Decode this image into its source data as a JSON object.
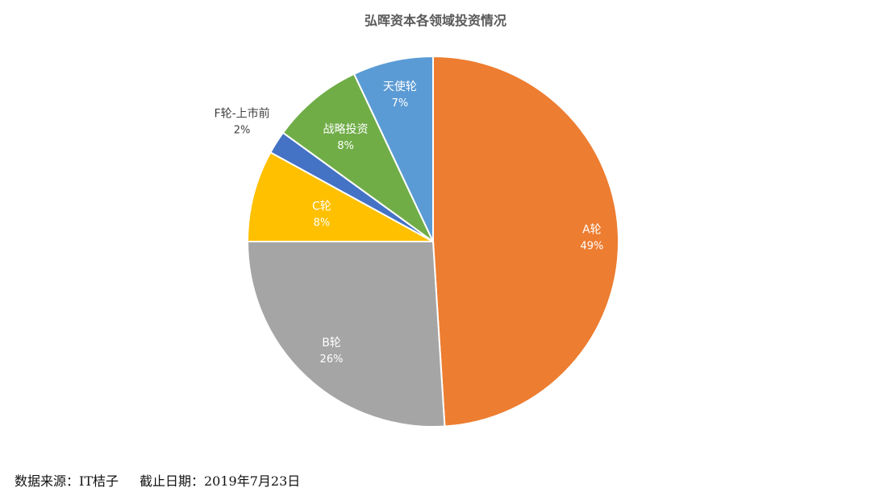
{
  "chart_data": {
    "type": "pie",
    "title": "弘晖资本各领域投资情况",
    "slices": [
      {
        "label": "A轮",
        "value": 49,
        "pct": "49%",
        "color": "#ED7D31",
        "label_color": "#ffffff"
      },
      {
        "label": "B轮",
        "value": 26,
        "pct": "26%",
        "color": "#A5A5A5",
        "label_color": "#ffffff"
      },
      {
        "label": "C轮",
        "value": 8,
        "pct": "8%",
        "color": "#FFC000",
        "label_color": "#ffffff"
      },
      {
        "label": "F轮-上市前",
        "value": 2,
        "pct": "2%",
        "color": "#4472C4",
        "label_color": "#404040"
      },
      {
        "label": "战略投资",
        "value": 8,
        "pct": "8%",
        "color": "#70AD47",
        "label_color": "#ffffff"
      },
      {
        "label": "天使轮",
        "value": 7,
        "pct": "7%",
        "color": "#5B9BD5",
        "label_color": "#ffffff"
      }
    ]
  },
  "footer": {
    "source": "数据来源：IT桔子",
    "date": "截止日期：2019年7月23日"
  }
}
